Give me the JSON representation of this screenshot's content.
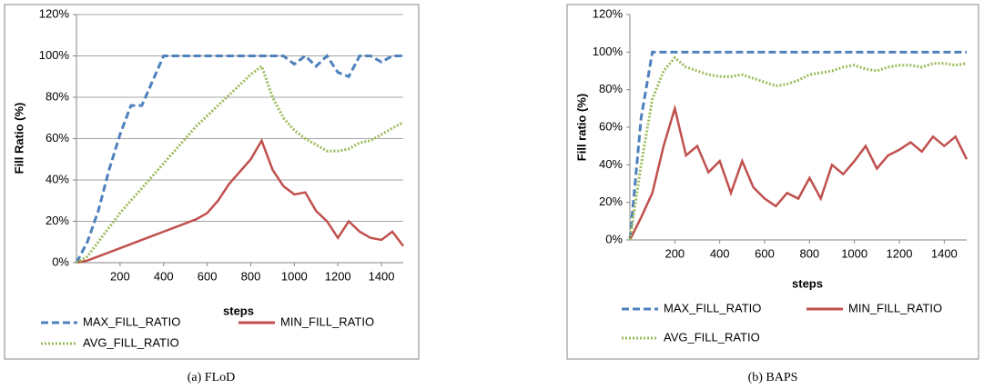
{
  "chart_data": [
    {
      "type": "line",
      "caption": "(a) FLoD",
      "xlabel": "steps",
      "ylabel": "Fill Ratio (%)",
      "x": [
        0,
        50,
        100,
        150,
        200,
        250,
        300,
        350,
        400,
        450,
        500,
        550,
        600,
        650,
        700,
        750,
        800,
        850,
        900,
        950,
        1000,
        1050,
        1100,
        1150,
        1200,
        1250,
        1300,
        1350,
        1400,
        1450,
        1500
      ],
      "xlim": [
        0,
        1500
      ],
      "xticks": [
        200,
        400,
        600,
        800,
        1000,
        1200,
        1400
      ],
      "ylim": [
        0,
        120
      ],
      "yticks": [
        {
          "value": 0,
          "label": "0%"
        },
        {
          "value": 20,
          "label": "20%"
        },
        {
          "value": 40,
          "label": "40%"
        },
        {
          "value": 60,
          "label": "60%"
        },
        {
          "value": 80,
          "label": "80%"
        },
        {
          "value": 100,
          "label": "100%"
        },
        {
          "value": 120,
          "label": "120%"
        }
      ],
      "grid": true,
      "series": [
        {
          "name": "MAX_FILL_RATIO",
          "color": "#4f81bd",
          "dash": "dashed",
          "values": [
            0,
            10,
            25,
            45,
            62,
            76,
            76,
            88,
            100,
            100,
            100,
            100,
            100,
            100,
            100,
            100,
            100,
            100,
            100,
            100,
            96,
            100,
            95,
            100,
            92,
            90,
            100,
            100,
            97,
            100,
            100
          ]
        },
        {
          "name": "MIN_FILL_RATIO",
          "color": "#c0504d",
          "dash": "solid",
          "values": [
            0,
            1,
            3,
            5,
            7,
            9,
            11,
            13,
            15,
            17,
            19,
            21,
            24,
            30,
            38,
            44,
            50,
            59,
            45,
            37,
            33,
            34,
            25,
            20,
            12,
            20,
            15,
            12,
            11,
            15,
            8
          ]
        },
        {
          "name": "AVG_FILL_RATIO",
          "color": "#9bbb59",
          "dash": "dotted",
          "values": [
            0,
            3,
            10,
            17,
            24,
            30,
            36,
            42,
            48,
            54,
            60,
            66,
            71,
            76,
            81,
            86,
            91,
            95,
            80,
            70,
            64,
            60,
            57,
            54,
            54,
            55,
            58,
            59,
            62,
            65,
            68
          ]
        }
      ]
    },
    {
      "type": "line",
      "caption": "(b) BAPS",
      "xlabel": "steps",
      "ylabel": "Fill ratio (%)",
      "x": [
        0,
        50,
        100,
        150,
        200,
        250,
        300,
        350,
        400,
        450,
        500,
        550,
        600,
        650,
        700,
        750,
        800,
        850,
        900,
        950,
        1000,
        1050,
        1100,
        1150,
        1200,
        1250,
        1300,
        1350,
        1400,
        1450,
        1500
      ],
      "xlim": [
        0,
        1500
      ],
      "xticks": [
        200,
        400,
        600,
        800,
        1000,
        1200,
        1400
      ],
      "ylim": [
        0,
        120
      ],
      "yticks": [
        {
          "value": 0,
          "label": "0%"
        },
        {
          "value": 20,
          "label": "20%"
        },
        {
          "value": 40,
          "label": "40%"
        },
        {
          "value": 60,
          "label": "60%"
        },
        {
          "value": 80,
          "label": "80%"
        },
        {
          "value": 100,
          "label": "100%"
        },
        {
          "value": 120,
          "label": "120%"
        }
      ],
      "grid": false,
      "series": [
        {
          "name": "MAX_FILL_RATIO",
          "color": "#4f81bd",
          "dash": "dashed",
          "values": [
            0,
            65,
            100,
            100,
            100,
            100,
            100,
            100,
            100,
            100,
            100,
            100,
            100,
            100,
            100,
            100,
            100,
            100,
            100,
            100,
            100,
            100,
            100,
            100,
            100,
            100,
            100,
            100,
            100,
            100,
            100
          ]
        },
        {
          "name": "MIN_FILL_RATIO",
          "color": "#c0504d",
          "dash": "solid",
          "values": [
            0,
            12,
            25,
            50,
            70,
            45,
            50,
            36,
            42,
            25,
            42,
            28,
            22,
            18,
            25,
            22,
            33,
            22,
            40,
            35,
            42,
            50,
            38,
            45,
            48,
            52,
            47,
            55,
            50,
            55,
            43
          ]
        },
        {
          "name": "AVG_FILL_RATIO",
          "color": "#9bbb59",
          "dash": "dotted",
          "values": [
            0,
            40,
            75,
            90,
            97,
            92,
            90,
            88,
            87,
            87,
            88,
            86,
            84,
            82,
            83,
            85,
            88,
            89,
            90,
            92,
            93,
            91,
            90,
            92,
            93,
            93,
            92,
            94,
            94,
            93,
            94
          ]
        }
      ]
    }
  ]
}
